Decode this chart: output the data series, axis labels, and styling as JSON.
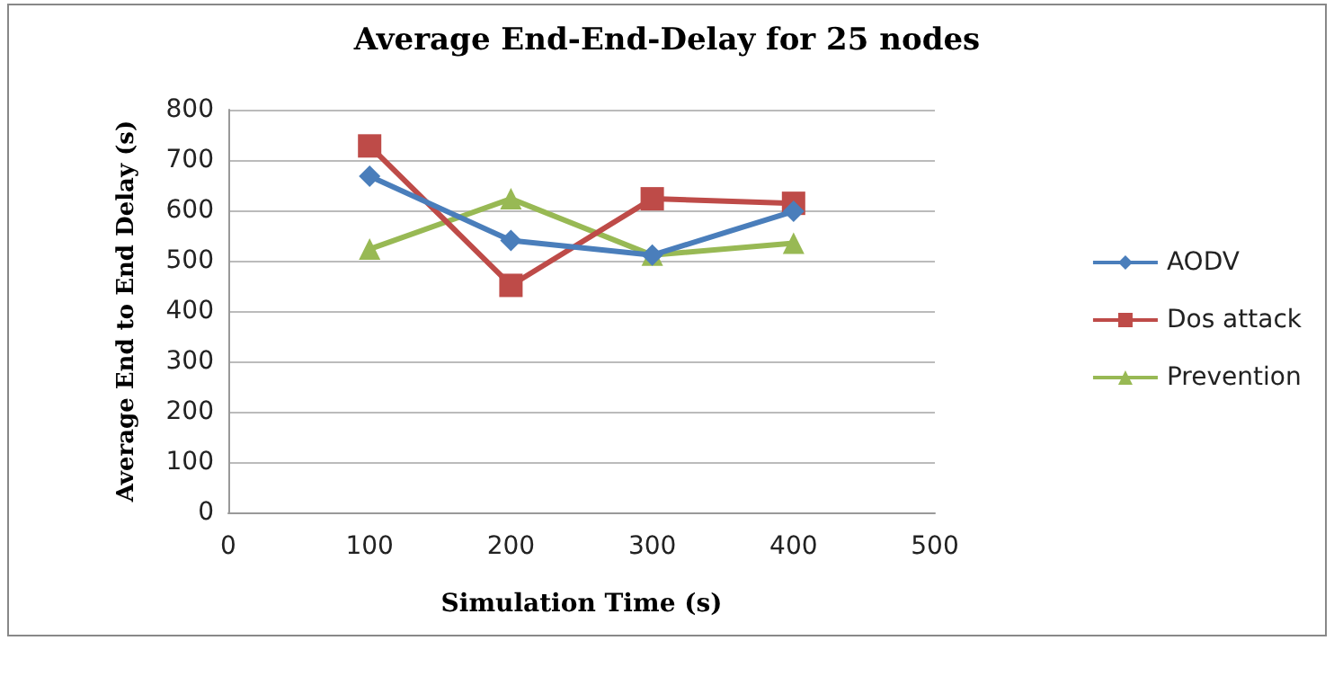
{
  "chart_data": {
    "type": "line",
    "title": "Average End-End-Delay for 25 nodes",
    "xlabel": "Simulation Time (s)",
    "ylabel": "Average End to End Delay (s)",
    "x": [
      100,
      200,
      300,
      400
    ],
    "series": [
      {
        "name": "AODV",
        "color": "#4a7ebb",
        "values": [
          668,
          540,
          511,
          598
        ],
        "marker": "diamond"
      },
      {
        "name": "Dos attack",
        "color": "#be4b48",
        "values": [
          728,
          451,
          623,
          614
        ],
        "marker": "square"
      },
      {
        "name": "Prevention",
        "color": "#98b954",
        "values": [
          523,
          623,
          511,
          535
        ],
        "marker": "triangle"
      }
    ],
    "xlim": [
      0,
      500
    ],
    "xticks": [
      0,
      100,
      200,
      300,
      400,
      500
    ],
    "ylim": [
      0,
      800
    ],
    "yticks": [
      0,
      100,
      200,
      300,
      400,
      500,
      600,
      700,
      800
    ],
    "grid": "y",
    "legend": "right"
  }
}
